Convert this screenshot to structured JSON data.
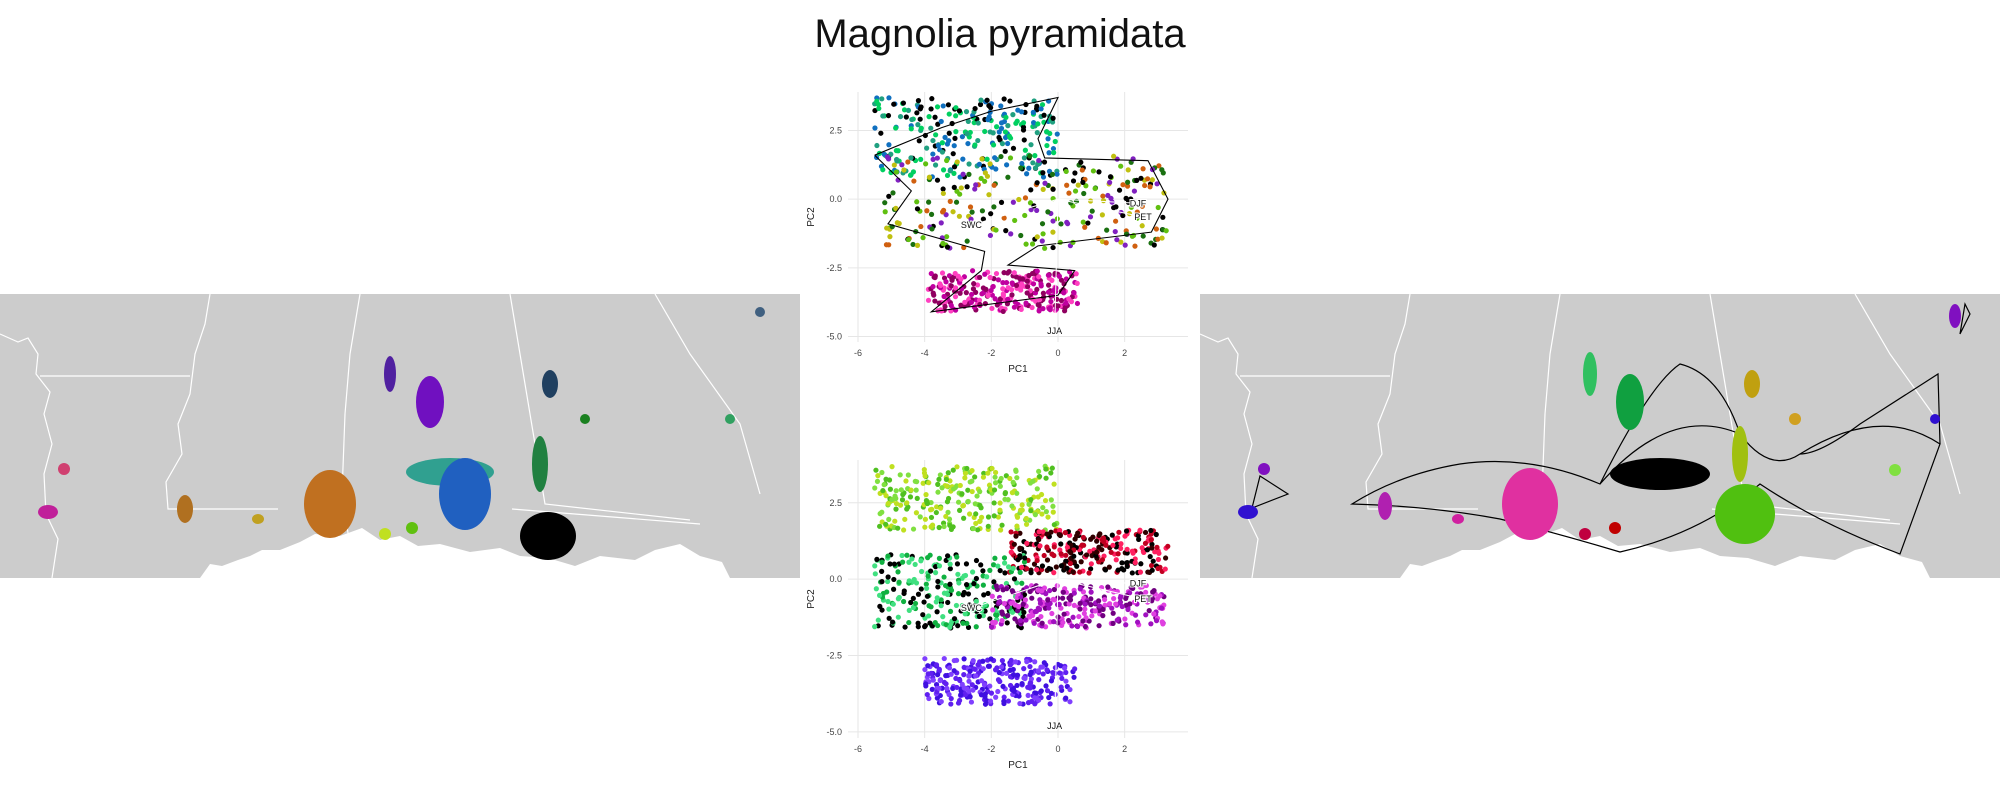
{
  "title": "Magnolia pyramidata",
  "chart_data": [
    {
      "type": "scatter",
      "title": "",
      "xlabel": "PC1",
      "ylabel": "PC2",
      "xlim": [
        -6.3,
        3.9
      ],
      "ylim": [
        -5.2,
        3.9
      ],
      "xticks": [
        -6,
        -4,
        -2,
        0,
        2
      ],
      "yticks": [
        -5.0,
        -2.5,
        0.0,
        2.5
      ],
      "xtick_labels": [
        "-6",
        "-4",
        "-2",
        "0",
        "2"
      ],
      "ytick_labels": [
        "-5.0",
        "-2.5",
        "0.0",
        "2.5"
      ],
      "grid": true,
      "coloring": "continuous RGB color space across the PCA cloud",
      "outline": "hull drawn around the point cloud",
      "point_clusters": [
        {
          "region": "upper-left lobe",
          "x_range": [
            -5.5,
            0.0
          ],
          "y_range": [
            0.8,
            3.7
          ],
          "colors": [
            "#1070c0",
            "#20a080",
            "#00d060",
            "#000000"
          ]
        },
        {
          "region": "central body",
          "x_range": [
            -5.2,
            3.3
          ],
          "y_range": [
            -1.8,
            1.6
          ],
          "colors": [
            "#000000",
            "#1a7010",
            "#60c010",
            "#c0c010",
            "#d06010",
            "#8020c0"
          ]
        },
        {
          "region": "lower lobe",
          "x_range": [
            -3.9,
            0.6
          ],
          "y_range": [
            -4.1,
            -2.6
          ],
          "colors": [
            "#c000a0",
            "#ff40c0",
            "#900060"
          ]
        }
      ],
      "loadings": [
        {
          "label": "DJF",
          "x": 2.4,
          "y": -0.15
        },
        {
          "label": "PET",
          "x": 2.55,
          "y": -0.65
        },
        {
          "label": "SWC",
          "x": -2.6,
          "y": -0.95
        },
        {
          "label": "JJA",
          "x": -0.1,
          "y": -4.8
        }
      ]
    },
    {
      "type": "scatter",
      "title": "",
      "xlabel": "PC1",
      "ylabel": "PC2",
      "xlim": [
        -6.3,
        3.9
      ],
      "ylim": [
        -5.2,
        3.9
      ],
      "xticks": [
        -6,
        -4,
        -2,
        0,
        2
      ],
      "yticks": [
        -5.0,
        -2.5,
        0.0,
        2.5
      ],
      "xtick_labels": [
        "-6",
        "-4",
        "-2",
        "0",
        "2"
      ],
      "ytick_labels": [
        "-5.0",
        "-2.5",
        "0.0",
        "2.5"
      ],
      "grid": true,
      "coloring": "categorical colors per population",
      "point_clusters": [
        {
          "region": "light green top",
          "x_range": [
            -5.5,
            0.0
          ],
          "y_range": [
            1.6,
            3.7
          ],
          "colors": [
            "#80e040",
            "#50c020",
            "#c0e020"
          ]
        },
        {
          "region": "dark red right",
          "x_range": [
            -1.5,
            3.3
          ],
          "y_range": [
            0.2,
            1.6
          ],
          "colors": [
            "#300000",
            "#c00020",
            "#ff2060",
            "#000000"
          ]
        },
        {
          "region": "green middle",
          "x_range": [
            -5.5,
            -1.0
          ],
          "y_range": [
            -1.6,
            0.8
          ],
          "colors": [
            "#10b040",
            "#40e080",
            "#000000"
          ]
        },
        {
          "region": "purple right",
          "x_range": [
            -2.0,
            3.2
          ],
          "y_range": [
            -1.6,
            -0.2
          ],
          "colors": [
            "#a010c0",
            "#e040e0",
            "#700080"
          ]
        },
        {
          "region": "blue-violet lower",
          "x_range": [
            -4.0,
            0.5
          ],
          "y_range": [
            -4.1,
            -2.6
          ],
          "colors": [
            "#4010e0",
            "#8040ff",
            "#6020f0"
          ]
        }
      ],
      "loadings": [
        {
          "label": "DJF",
          "x": 2.4,
          "y": -0.15
        },
        {
          "label": "PET",
          "x": 2.55,
          "y": -0.65
        },
        {
          "label": "SWC",
          "x": -2.6,
          "y": -0.95
        },
        {
          "label": "JJA",
          "x": -0.1,
          "y": -4.8
        }
      ]
    }
  ],
  "maps": {
    "land_color": "#cccccc",
    "water_color": "#ffffff",
    "border_color": "#ffffff",
    "left_populations_colors": [
      "#c0209a",
      "#d04070",
      "#b07020",
      "#c0a020",
      "#c07020",
      "#5020a0",
      "#7010c0",
      "#30a090",
      "#2060c0",
      "#204060",
      "#208040",
      "#1a8020",
      "#000000",
      "#30a060",
      "#406080",
      "#c0e020",
      "#60c010"
    ],
    "right_populations_colors": [
      "#3010d0",
      "#8010c0",
      "#b020b0",
      "#d020a0",
      "#e030a0",
      "#c00040",
      "#c00000",
      "#000000",
      "#30c060",
      "#10a040",
      "#50c010",
      "#a0c010",
      "#c0a010",
      "#d0a020",
      "#80e040"
    ]
  }
}
